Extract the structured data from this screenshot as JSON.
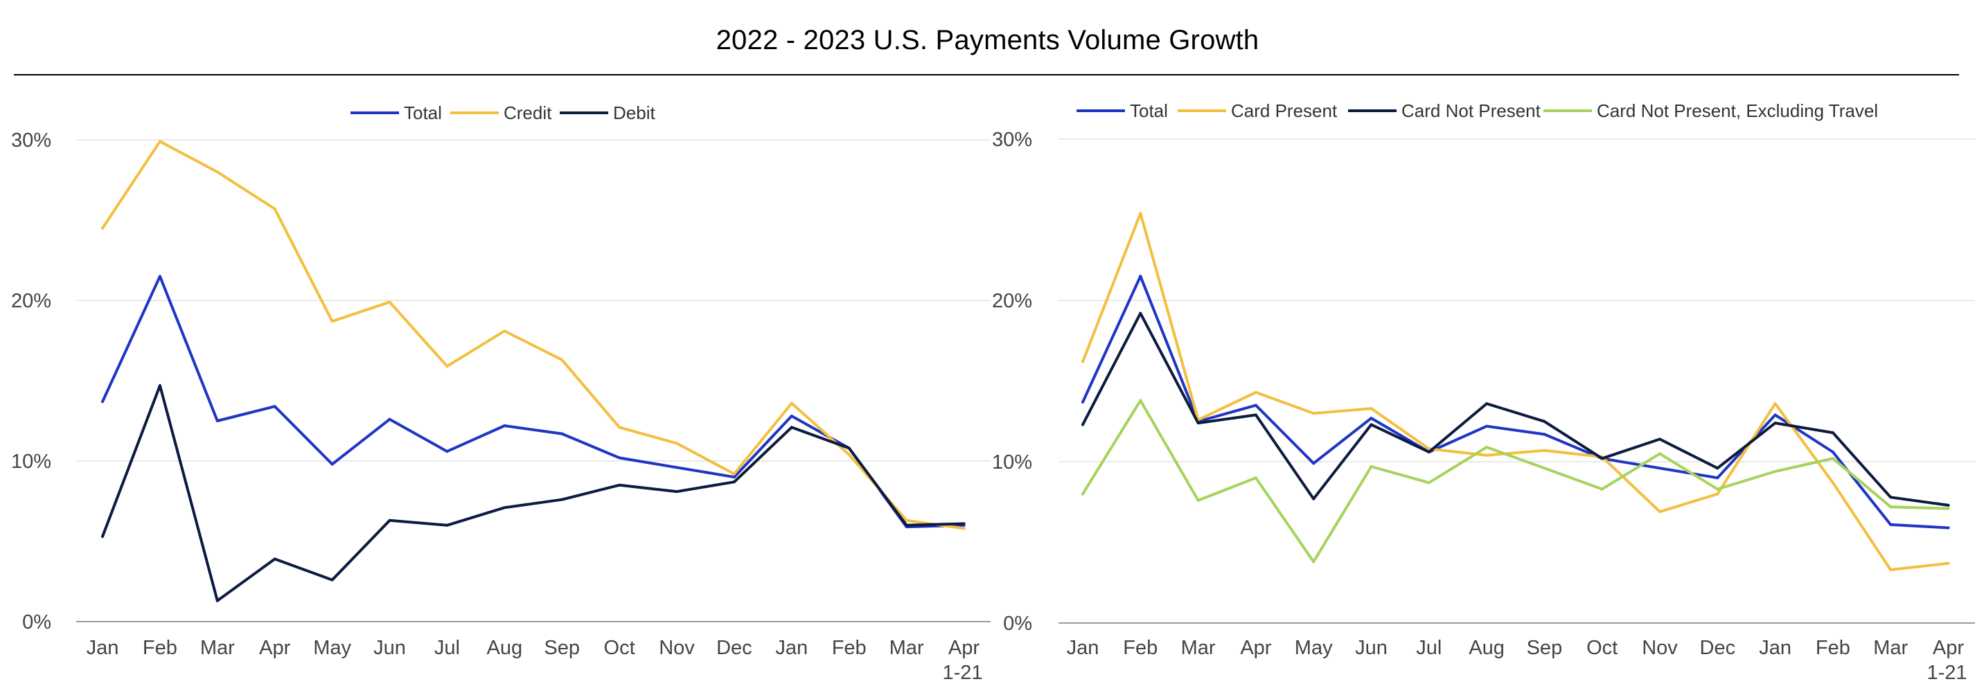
{
  "title": "2022 - 2023 U.S. Payments Volume Growth",
  "chart_data": [
    {
      "type": "line",
      "title": "",
      "xlabel": "",
      "ylabel": "",
      "categories": [
        "Jan",
        "Feb",
        "Mar",
        "Apr",
        "May",
        "Jun",
        "Jul",
        "Aug",
        "Sep",
        "Oct",
        "Nov",
        "Dec",
        "Jan",
        "Feb",
        "Mar",
        "Apr 1-21"
      ],
      "ylim": [
        0,
        30
      ],
      "yticks": [
        "0%",
        "10%",
        "20%",
        "30%"
      ],
      "grid": true,
      "legend_position": "top-center",
      "series": [
        {
          "name": "Total",
          "color": "#1f35c4",
          "values": [
            13.7,
            21.5,
            12.5,
            13.4,
            9.8,
            12.6,
            10.6,
            12.2,
            11.7,
            10.2,
            9.6,
            9.0,
            12.8,
            10.8,
            5.9,
            6.0
          ]
        },
        {
          "name": "Credit",
          "color": "#f3bf3f",
          "values": [
            24.5,
            29.9,
            28.0,
            25.7,
            18.7,
            19.9,
            15.9,
            18.1,
            16.3,
            12.1,
            11.1,
            9.2,
            13.6,
            10.4,
            6.3,
            5.8
          ]
        },
        {
          "name": "Debit",
          "color": "#0c1b3e",
          "values": [
            5.3,
            14.7,
            1.3,
            3.9,
            2.6,
            6.3,
            6.0,
            7.1,
            7.6,
            8.5,
            8.1,
            8.7,
            12.1,
            10.8,
            6.0,
            6.1
          ]
        }
      ]
    },
    {
      "type": "line",
      "title": "",
      "xlabel": "",
      "ylabel": "",
      "categories": [
        "Jan",
        "Feb",
        "Mar",
        "Apr",
        "May",
        "Jun",
        "Jul",
        "Aug",
        "Sep",
        "Oct",
        "Nov",
        "Dec",
        "Jan",
        "Feb",
        "Mar",
        "Apr 1-21"
      ],
      "ylim": [
        0,
        30
      ],
      "yticks": [
        "0%",
        "10%",
        "20%",
        "30%"
      ],
      "grid": true,
      "legend_position": "top-center",
      "series": [
        {
          "name": "Total",
          "color": "#1f35c4",
          "values": [
            13.7,
            21.5,
            12.5,
            13.5,
            9.9,
            12.7,
            10.6,
            12.2,
            11.7,
            10.2,
            9.6,
            9.0,
            12.9,
            10.6,
            6.1,
            5.9
          ]
        },
        {
          "name": "Card Present",
          "color": "#f3bf3f",
          "values": [
            16.2,
            25.4,
            12.6,
            14.3,
            13.0,
            13.3,
            10.8,
            10.4,
            10.7,
            10.3,
            6.9,
            8.0,
            13.6,
            8.7,
            3.3,
            3.7
          ]
        },
        {
          "name": "Card Not Present",
          "color": "#0c1b3e",
          "values": [
            12.3,
            19.2,
            12.4,
            12.9,
            7.7,
            12.3,
            10.6,
            13.6,
            12.5,
            10.2,
            11.4,
            9.6,
            12.4,
            11.8,
            7.8,
            7.3
          ]
        },
        {
          "name": "Card Not Present, Excluding Travel",
          "color": "#a6d35e",
          "values": [
            8.0,
            13.8,
            7.6,
            9.0,
            3.8,
            9.7,
            8.7,
            10.9,
            9.6,
            8.3,
            10.5,
            8.3,
            9.4,
            10.2,
            7.2,
            7.1
          ]
        }
      ]
    }
  ]
}
